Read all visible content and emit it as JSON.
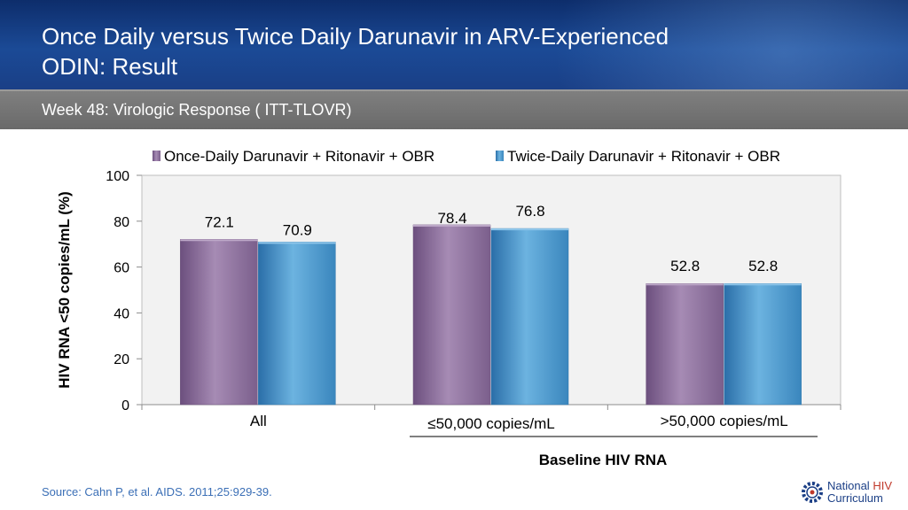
{
  "header": {
    "title_line1": "Once Daily versus Twice Daily Darunavir in ARV-Experienced",
    "title_line2": "ODIN: Result"
  },
  "subheader": {
    "text": "Week 48: Virologic Response ( ITT-TLOVR)"
  },
  "footer": {
    "source": "Source: Cahn P, et al. AIDS. 2011;25:929-39."
  },
  "logo": {
    "line1_a": "National ",
    "line1_b": "HIV",
    "line2": "Curriculum",
    "icon": "gear-logo-icon"
  },
  "colors": {
    "series1": "#8b6f9a",
    "series2": "#3f8fc4",
    "plot_bg": "#f2f2f2",
    "header": "#1b4a96"
  },
  "chart_data": {
    "type": "bar",
    "categories": [
      "All",
      "≤50,000 copies/mL",
      ">50,000 copies/mL"
    ],
    "series": [
      {
        "name": "Once-Daily Darunavir + Ritonavir + OBR",
        "values": [
          72.1,
          78.4,
          52.8
        ]
      },
      {
        "name": "Twice-Daily Darunavir + Ritonavir + OBR",
        "values": [
          70.9,
          76.8,
          52.8
        ]
      }
    ],
    "data_labels": [
      [
        "72.1",
        "78.4",
        "52.8"
      ],
      [
        "70.9",
        "76.8",
        "52.8"
      ]
    ],
    "yticks": [
      0,
      20,
      40,
      60,
      80,
      100
    ],
    "ylim": [
      0,
      100
    ],
    "ylabel": "HIV RNA <50 copies/mL (%)",
    "xlabel": "Baseline HIV RNA",
    "legend": "top",
    "grid": false
  }
}
